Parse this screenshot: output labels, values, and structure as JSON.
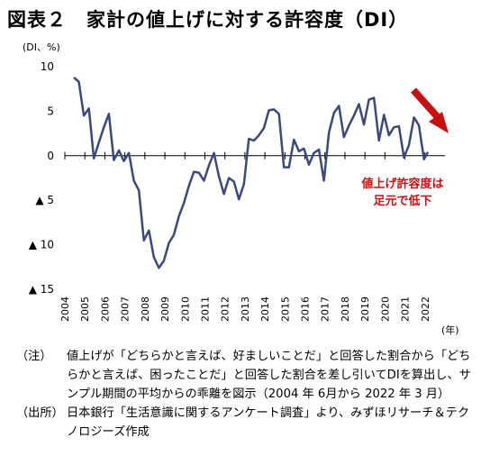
{
  "title": "図表２　家計の値上げに対する許容度（DI）",
  "chart_data": {
    "type": "line",
    "unit_label": "(DI、%)",
    "x_unit_label": "(年)",
    "ylim": [
      -15,
      10
    ],
    "yticks": [
      {
        "value": 10,
        "label": "10"
      },
      {
        "value": 5,
        "label": "5"
      },
      {
        "value": 0,
        "label": "0"
      },
      {
        "value": -5,
        "label": "▲ 5"
      },
      {
        "value": -10,
        "label": "▲ 10"
      },
      {
        "value": -15,
        "label": "▲ 15"
      }
    ],
    "xticks": [
      "2004",
      "2005",
      "2006",
      "2007",
      "2008",
      "2009",
      "2010",
      "2011",
      "2012",
      "2013",
      "2014",
      "2015",
      "2016",
      "2017",
      "2018",
      "2019",
      "2020",
      "2021",
      "2022"
    ],
    "series": [
      {
        "color": "#3b4a7e",
        "points": [
          [
            2004.45,
            8.8
          ],
          [
            2004.7,
            8.3
          ],
          [
            2004.95,
            4.5
          ],
          [
            2005.2,
            5.3
          ],
          [
            2005.45,
            -0.3
          ],
          [
            2005.7,
            1.5
          ],
          [
            2005.95,
            3.2
          ],
          [
            2006.2,
            4.7
          ],
          [
            2006.45,
            -0.5
          ],
          [
            2006.7,
            0.6
          ],
          [
            2006.95,
            -0.6
          ],
          [
            2007.2,
            0.3
          ],
          [
            2007.45,
            -2.8
          ],
          [
            2007.7,
            -3.9
          ],
          [
            2007.95,
            -9.5
          ],
          [
            2008.2,
            -8.4
          ],
          [
            2008.45,
            -11.4
          ],
          [
            2008.7,
            -12.6
          ],
          [
            2008.95,
            -11.8
          ],
          [
            2009.2,
            -9.8
          ],
          [
            2009.45,
            -8.9
          ],
          [
            2009.7,
            -6.8
          ],
          [
            2009.95,
            -5.3
          ],
          [
            2010.2,
            -3.4
          ],
          [
            2010.45,
            -1.8
          ],
          [
            2010.7,
            -1.9
          ],
          [
            2010.95,
            -2.8
          ],
          [
            2011.2,
            -1.1
          ],
          [
            2011.45,
            0.3
          ],
          [
            2011.7,
            -2.3
          ],
          [
            2011.95,
            -4.3
          ],
          [
            2012.2,
            -2.5
          ],
          [
            2012.45,
            -2.9
          ],
          [
            2012.7,
            -4.9
          ],
          [
            2012.95,
            -3.2
          ],
          [
            2013.2,
            1.9
          ],
          [
            2013.45,
            1.7
          ],
          [
            2013.7,
            2.3
          ],
          [
            2013.95,
            3.1
          ],
          [
            2014.2,
            5.1
          ],
          [
            2014.45,
            5.2
          ],
          [
            2014.7,
            4.7
          ],
          [
            2014.95,
            -1.3
          ],
          [
            2015.2,
            -1.3
          ],
          [
            2015.45,
            1.8
          ],
          [
            2015.7,
            0.5
          ],
          [
            2015.95,
            0.8
          ],
          [
            2016.2,
            -1.0
          ],
          [
            2016.45,
            0.3
          ],
          [
            2016.7,
            0.7
          ],
          [
            2016.95,
            -2.8
          ],
          [
            2017.2,
            2.6
          ],
          [
            2017.45,
            4.8
          ],
          [
            2017.7,
            5.6
          ],
          [
            2017.95,
            2.1
          ],
          [
            2018.2,
            3.4
          ],
          [
            2018.45,
            4.5
          ],
          [
            2018.7,
            5.8
          ],
          [
            2018.95,
            3.5
          ],
          [
            2019.2,
            6.3
          ],
          [
            2019.45,
            6.5
          ],
          [
            2019.7,
            1.7
          ],
          [
            2019.95,
            4.6
          ],
          [
            2020.2,
            2.3
          ],
          [
            2020.45,
            3.2
          ],
          [
            2020.7,
            3.3
          ],
          [
            2020.95,
            -0.2
          ],
          [
            2021.2,
            1.2
          ],
          [
            2021.45,
            4.3
          ],
          [
            2021.7,
            3.4
          ],
          [
            2021.95,
            -0.4
          ],
          [
            2022.15,
            0.4
          ]
        ]
      }
    ],
    "annotation": {
      "lines": [
        "値上げ許容度は",
        "足元で低下"
      ],
      "color": "#cc1010"
    }
  },
  "notes": [
    {
      "label": "（注）",
      "text": "値上げが「どちらかと言えば、好ましいことだ」と回答した割合から「どちらかと言えば、困ったことだ」と回答した割合を差し引いてDIを算出し、サンプル期間の平均からの乖離を図示（2004 年 6月から 2022 年 3 月）"
    },
    {
      "label": "（出所）",
      "text": "日本銀行「生活意識に関するアンケート調査」より、みずほリサーチ＆テクノロジーズ作成"
    }
  ]
}
